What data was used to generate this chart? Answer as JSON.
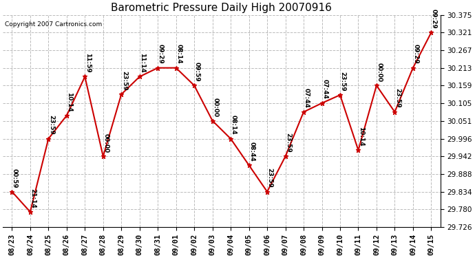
{
  "title": "Barometric Pressure Daily High 20070916",
  "copyright": "Copyright 2007 Cartronics.com",
  "x_labels": [
    "08/23",
    "08/24",
    "08/25",
    "08/26",
    "08/27",
    "08/28",
    "08/29",
    "08/30",
    "08/31",
    "09/01",
    "09/02",
    "09/03",
    "09/04",
    "09/05",
    "09/06",
    "09/07",
    "09/08",
    "09/09",
    "09/10",
    "09/11",
    "09/12",
    "09/13",
    "09/14",
    "09/15"
  ],
  "y_values": [
    29.834,
    29.772,
    29.996,
    30.067,
    30.186,
    29.942,
    30.132,
    30.186,
    30.213,
    30.213,
    30.159,
    30.051,
    29.996,
    29.915,
    29.834,
    29.942,
    30.078,
    30.105,
    30.13,
    29.961,
    30.159,
    30.078,
    30.213,
    30.321
  ],
  "time_labels": [
    "00:59",
    "21:14",
    "23:59",
    "10:14",
    "11:59",
    "00:00",
    "23:59",
    "11:14",
    "09:29",
    "08:14",
    "09:59",
    "00:00",
    "08:14",
    "08:44",
    "23:59",
    "23:59",
    "07:44",
    "07:44",
    "23:59",
    "10:14",
    "00:00",
    "23:59",
    "09:29",
    "09:29"
  ],
  "ylim": [
    29.726,
    30.375
  ],
  "yticks": [
    29.726,
    29.78,
    29.834,
    29.888,
    29.942,
    29.996,
    30.051,
    30.105,
    30.159,
    30.213,
    30.267,
    30.321,
    30.375
  ],
  "line_color": "#cc0000",
  "marker_color": "#cc0000",
  "bg_color": "#ffffff",
  "grid_color": "#bbbbbb",
  "title_fontsize": 11,
  "label_fontsize": 6.5,
  "tick_fontsize": 7.5,
  "copyright_fontsize": 6.5
}
